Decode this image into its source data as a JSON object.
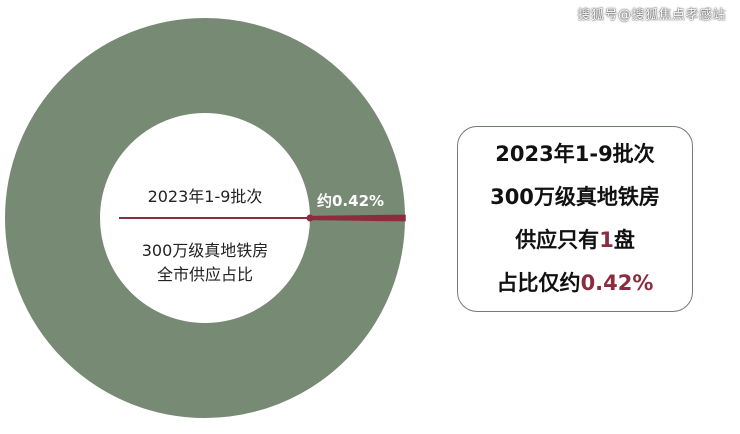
{
  "watermark": "搜狐号@搜狐焦点孝感站",
  "chart_data": {
    "type": "pie",
    "donut": true,
    "slices": [
      {
        "label": "约0.42%",
        "value": 0.42,
        "color": "#8b2d3f"
      },
      {
        "label": "",
        "value": 99.58,
        "color": "#778a74"
      }
    ],
    "center_title": "2023年1-9批次",
    "center_desc_line1": "300万级真地铁房",
    "center_desc_line2": "全市供应占比"
  },
  "info_box": {
    "line1": "2023年1-9批次",
    "line2": "300万级真地铁房",
    "line3_prefix": "供应只有",
    "line3_highlight": "1",
    "line3_suffix": "盘",
    "line4_prefix": "占比仅约",
    "line4_highlight": "0.42%"
  },
  "colors": {
    "ring": "#778a74",
    "accent": "#8b2d3f",
    "box_border": "#6f7e6e"
  }
}
